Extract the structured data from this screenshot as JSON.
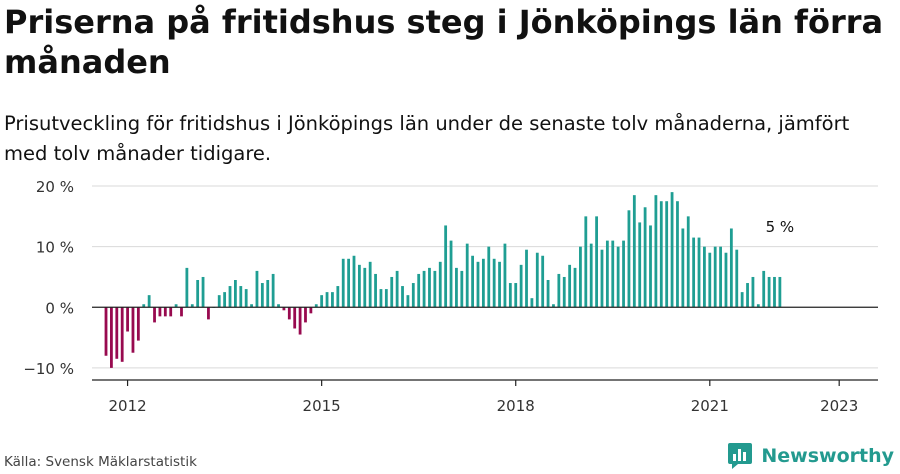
{
  "title": "Priserna på fritidshus steg i Jönköpings län förra månaden",
  "subtitle": "Prisutveckling för fritidshus i Jönköpings län under de senaste tolv månaderna, jämfört med tolv månader tidigare.",
  "source": "Källa: Svensk Mäklarstatistik",
  "brand": "Newsworthy",
  "colors": {
    "positive": "#1f9e93",
    "negative": "#980a4f",
    "grid": "#d9d9d9",
    "axis": "#222222",
    "logo": "#239a8f"
  },
  "chart_data": {
    "type": "bar",
    "unit": "%",
    "ylim": [
      -12,
      21
    ],
    "yticks": [
      20,
      10,
      0,
      -10
    ],
    "ytick_labels": [
      "20 %",
      "10 %",
      "0 %",
      "−10 %"
    ],
    "xlim": [
      2011.45,
      2023.6
    ],
    "xticks": [
      2012,
      2015,
      2018,
      2021,
      2023
    ],
    "xtick_labels": [
      "2012",
      "2015",
      "2018",
      "2021",
      "2023"
    ],
    "start": "2011-09",
    "frequency": "monthly",
    "grid": true,
    "annotation": {
      "text": "5 %"
    },
    "values": [
      -8,
      -10,
      -8.5,
      -9,
      -4,
      -7.5,
      -5.5,
      0.5,
      2,
      -2.5,
      -1.5,
      -1.5,
      -1.5,
      0.5,
      -1.5,
      6.5,
      0.5,
      4.5,
      5,
      -2,
      0,
      2,
      2.5,
      3.5,
      4.5,
      3.5,
      3,
      0.5,
      6,
      4,
      4.5,
      5.5,
      0.5,
      -0.5,
      -2,
      -3.5,
      -4.5,
      -2.5,
      -1,
      0.5,
      2,
      2.5,
      2.5,
      3.5,
      8,
      8,
      8.5,
      7,
      6.5,
      7.5,
      5.5,
      3,
      3,
      5,
      6,
      3.5,
      2,
      4,
      5.5,
      6,
      6.5,
      6,
      7.5,
      13.5,
      11,
      6.5,
      6,
      10.5,
      8.5,
      7.5,
      8,
      10,
      8,
      7.5,
      10.5,
      4,
      4,
      7,
      9.5,
      1.5,
      9,
      8.5,
      4.5,
      0.5,
      5.5,
      5,
      7,
      6.5,
      10,
      15,
      10.5,
      15,
      9.5,
      11,
      11,
      10,
      11,
      16,
      18.5,
      14,
      16.5,
      13.5,
      18.5,
      17.5,
      17.5,
      19,
      17.5,
      13,
      15,
      11.5,
      11.5,
      10,
      9,
      10,
      10,
      9,
      13,
      9.5,
      2.5,
      4,
      5,
      0.5,
      6,
      5,
      5,
      5
    ]
  }
}
